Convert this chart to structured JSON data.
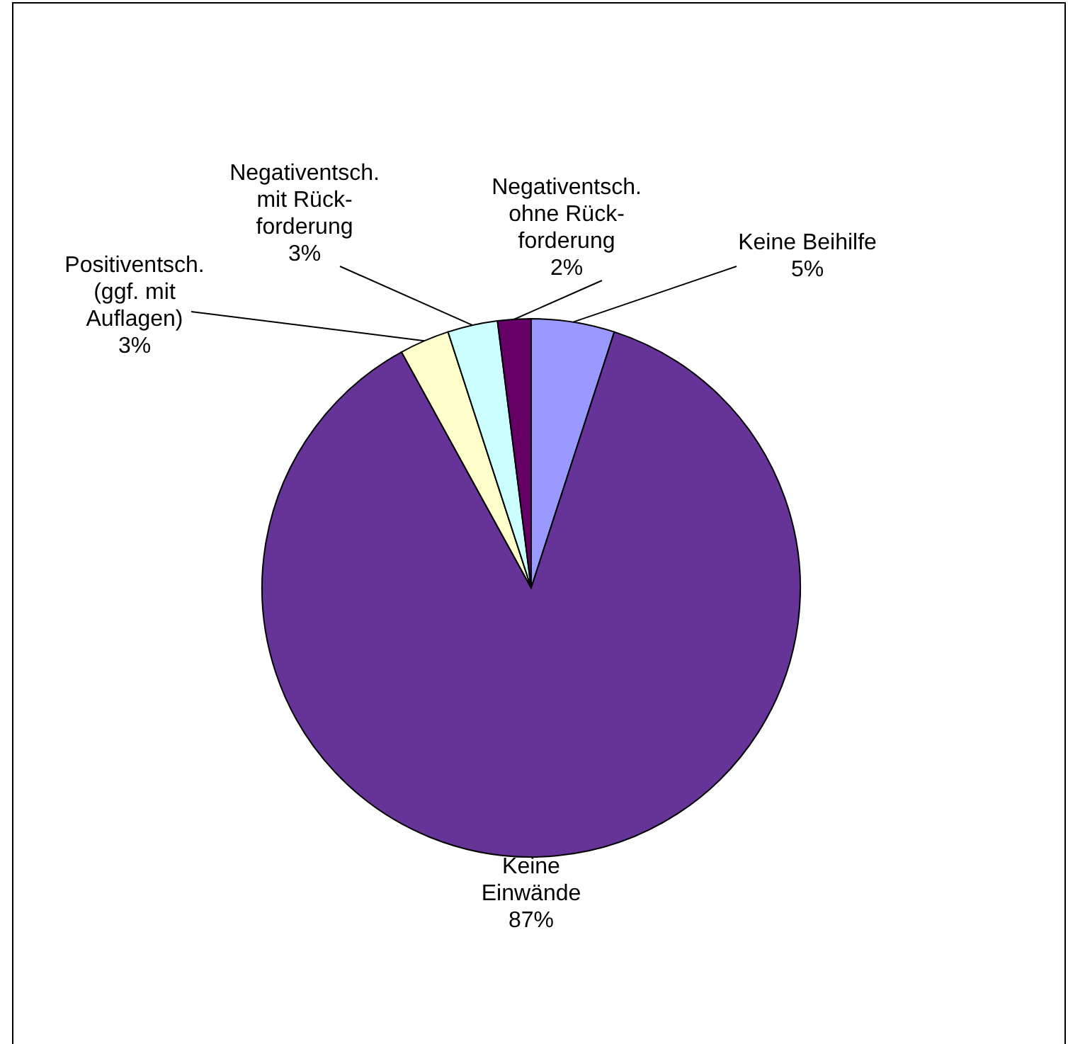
{
  "chart_data": {
    "type": "pie",
    "categories": [
      "Keine Beihilfe",
      "Keine\nEinwände",
      "Positiventsch.\n(ggf. mit\nAuflagen)",
      "Negativentsch.\nmit Rück-\nforderung",
      "Negativentsch.\nohne Rück-\nforderung"
    ],
    "values": [
      5,
      87,
      3,
      3,
      2
    ],
    "colors": [
      "#9999ff",
      "#663399",
      "#ffffcc",
      "#ccffff",
      "#660066"
    ],
    "value_labels": [
      "5%",
      "87%",
      "3%",
      "3%",
      "2%"
    ]
  }
}
